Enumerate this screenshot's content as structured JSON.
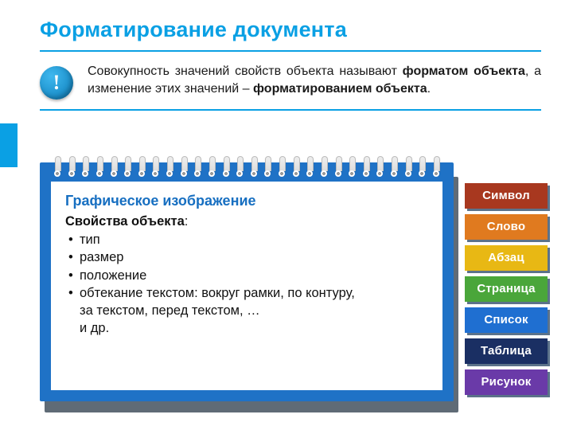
{
  "title": "Форматирование документа",
  "accent_color": "#0aa0e4",
  "info": {
    "icon_glyph": "!",
    "seg1": "Совокупность значений свойств объекта называют ",
    "bold1": "форматом объекта",
    "seg2": ", а изменение этих значений – ",
    "bold2": "форматированием объекта",
    "seg3": "."
  },
  "notepad": {
    "outer_color": "#1f72c6",
    "shadow_color": "#5f6b76",
    "title": "Графическое изображение",
    "subtitle_bold": "Свойства объекта",
    "subtitle_tail": ":",
    "items": [
      "тип",
      "размер",
      "положение",
      "обтекание текстом: вокруг рамки, по контуру,"
    ],
    "extra_lines": [
      "за текстом, перед текстом, …",
      "и др."
    ]
  },
  "tabs": [
    {
      "label": "Символ",
      "color": "#a8381f"
    },
    {
      "label": "Слово",
      "color": "#e07a1f"
    },
    {
      "label": "Абзац",
      "color": "#e8b814"
    },
    {
      "label": "Страница",
      "color": "#4aa63a"
    },
    {
      "label": "Список",
      "color": "#1f6fd1"
    },
    {
      "label": "Таблица",
      "color": "#1a2f63"
    },
    {
      "label": "Рисунок",
      "color": "#6a3aa8"
    }
  ]
}
